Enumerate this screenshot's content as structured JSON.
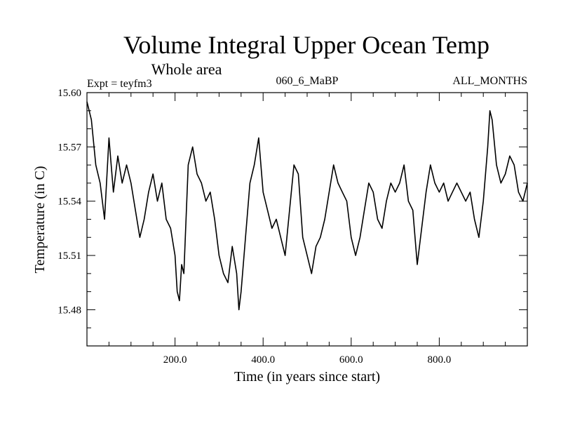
{
  "chart_data": {
    "type": "line",
    "title": "Volume Integral Upper Ocean Temp",
    "subtitle": "Whole area",
    "expt_label": "Expt = teyfm3",
    "run_label": "060_6_MaBP",
    "months_label": "ALL_MONTHS",
    "xlabel": "Time (in years since start)",
    "ylabel": "Temperature (in C)",
    "xlim": [
      0,
      1000
    ],
    "ylim": [
      15.46,
      15.6
    ],
    "x_ticks": [
      200,
      400,
      600,
      800
    ],
    "x_tick_labels": [
      "200.0",
      "400.0",
      "600.0",
      "800.0"
    ],
    "y_ticks": [
      15.48,
      15.51,
      15.54,
      15.57,
      15.6
    ],
    "y_tick_labels": [
      "15.48",
      "15.51",
      "15.54",
      "15.57",
      "15.60"
    ],
    "series": [
      {
        "name": "Volume integral upper ocean temperature",
        "color": "#000000",
        "x": [
          0,
          10,
          20,
          30,
          40,
          50,
          60,
          70,
          80,
          90,
          100,
          110,
          120,
          130,
          140,
          150,
          160,
          170,
          180,
          190,
          200,
          205,
          210,
          215,
          220,
          230,
          240,
          250,
          260,
          270,
          280,
          290,
          300,
          310,
          320,
          330,
          340,
          345,
          350,
          360,
          370,
          380,
          390,
          400,
          410,
          420,
          430,
          440,
          450,
          460,
          470,
          480,
          490,
          500,
          510,
          520,
          530,
          540,
          550,
          560,
          570,
          580,
          590,
          600,
          610,
          620,
          630,
          640,
          650,
          660,
          670,
          680,
          690,
          700,
          710,
          720,
          730,
          740,
          750,
          760,
          770,
          780,
          790,
          800,
          810,
          820,
          830,
          840,
          850,
          860,
          870,
          880,
          890,
          900,
          910,
          915,
          920,
          930,
          940,
          950,
          960,
          970,
          980,
          990,
          1000
        ],
        "y": [
          15.595,
          15.585,
          15.56,
          15.55,
          15.53,
          15.575,
          15.545,
          15.565,
          15.55,
          15.56,
          15.55,
          15.535,
          15.52,
          15.53,
          15.545,
          15.555,
          15.54,
          15.55,
          15.53,
          15.525,
          15.51,
          15.49,
          15.485,
          15.505,
          15.5,
          15.56,
          15.57,
          15.555,
          15.55,
          15.54,
          15.545,
          15.53,
          15.51,
          15.5,
          15.495,
          15.515,
          15.5,
          15.48,
          15.49,
          15.52,
          15.55,
          15.56,
          15.575,
          15.545,
          15.535,
          15.525,
          15.53,
          15.52,
          15.51,
          15.535,
          15.56,
          15.555,
          15.52,
          15.51,
          15.5,
          15.515,
          15.52,
          15.53,
          15.545,
          15.56,
          15.55,
          15.545,
          15.54,
          15.52,
          15.51,
          15.52,
          15.535,
          15.55,
          15.545,
          15.53,
          15.525,
          15.54,
          15.55,
          15.545,
          15.55,
          15.56,
          15.54,
          15.535,
          15.505,
          15.525,
          15.545,
          15.56,
          15.55,
          15.545,
          15.55,
          15.54,
          15.545,
          15.55,
          15.545,
          15.54,
          15.545,
          15.53,
          15.52,
          15.54,
          15.57,
          15.59,
          15.585,
          15.56,
          15.55,
          15.555,
          15.565,
          15.56,
          15.545,
          15.54,
          15.55
        ]
      }
    ]
  }
}
